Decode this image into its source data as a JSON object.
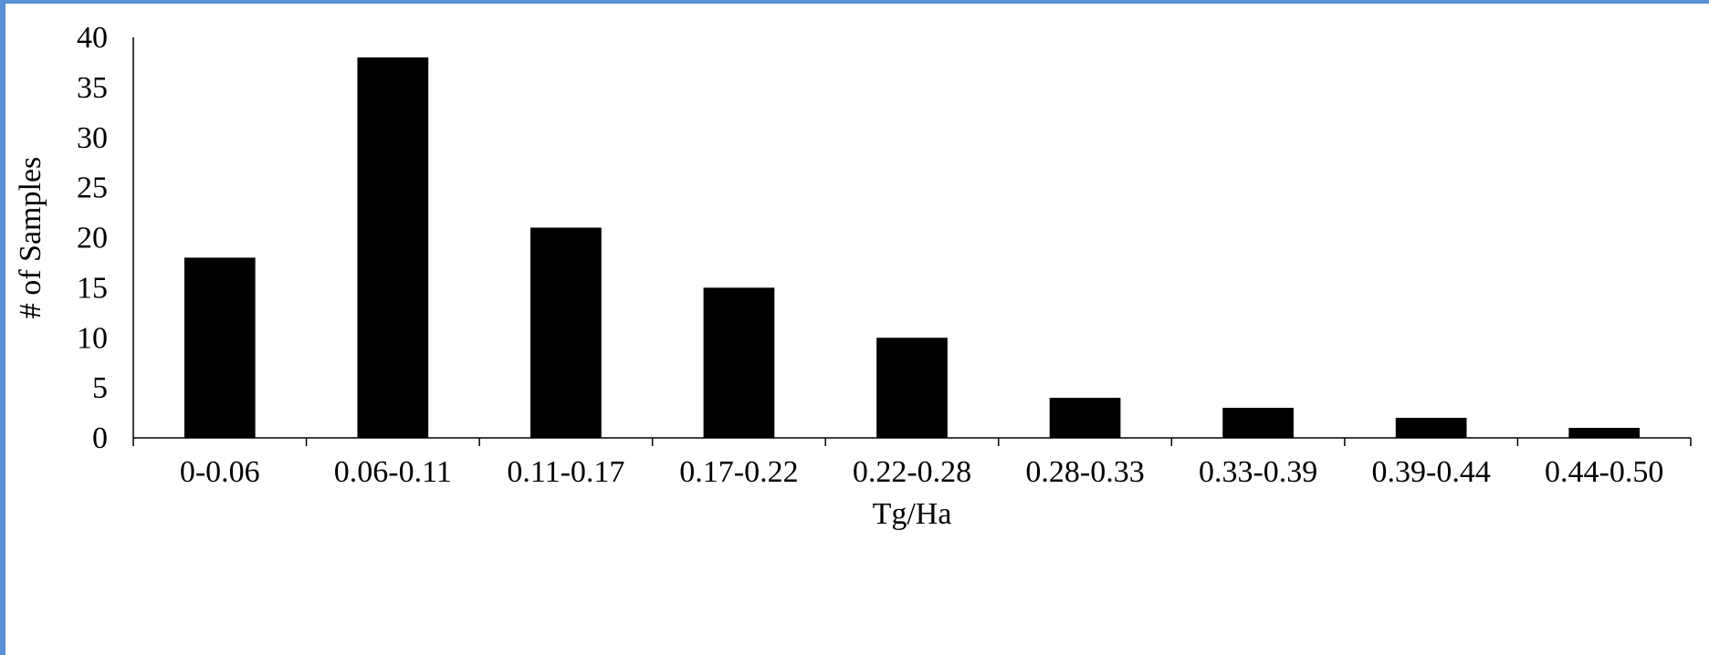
{
  "chart_data": {
    "type": "bar",
    "title": "",
    "xlabel": "Tg/Ha",
    "ylabel": "# of Samples",
    "categories": [
      "0-0.06",
      "0.06-0.11",
      "0.11-0.17",
      "0.17-0.22",
      "0.22-0.28",
      "0.28-0.33",
      "0.33-0.39",
      "0.39-0.44",
      "0.44-0.50"
    ],
    "values": [
      18,
      38,
      21,
      15,
      10,
      4,
      3,
      2,
      1
    ],
    "ylim": [
      0,
      40
    ],
    "yticks": [
      0,
      5,
      10,
      15,
      20,
      25,
      30,
      35,
      40
    ],
    "grid": false,
    "legend": "none",
    "colors": {
      "bar": "#000000",
      "axis": "#000000",
      "frame_border": "#5b8fd6"
    }
  }
}
